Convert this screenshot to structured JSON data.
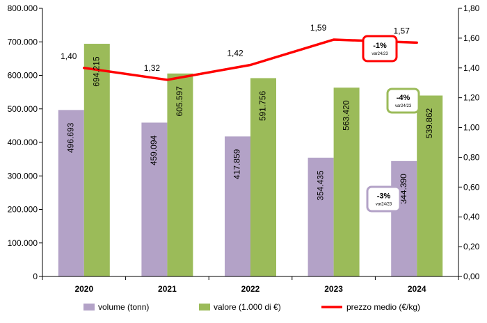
{
  "chart_data": {
    "type": "bar",
    "categories": [
      "2020",
      "2021",
      "2022",
      "2023",
      "2024"
    ],
    "series": [
      {
        "name": "volume (tonn)",
        "values": [
          496693,
          459094,
          417859,
          354435,
          344390
        ],
        "labels": [
          "496.693",
          "459.094",
          "417.859",
          "354.435",
          "344.390"
        ],
        "color": "#b3a2c7",
        "axis": "left"
      },
      {
        "name": "valore (1.000 di €)",
        "values": [
          694215,
          605597,
          591756,
          563420,
          539862
        ],
        "labels": [
          "694.215",
          "605.597",
          "591.756",
          "563.420",
          "539.862"
        ],
        "color": "#9bbb59",
        "axis": "left"
      },
      {
        "name": "prezzo medio (€/kg)",
        "type": "line",
        "values": [
          1.4,
          1.32,
          1.42,
          1.59,
          1.57
        ],
        "labels": [
          "1,40",
          "1,32",
          "1,42",
          "1,59",
          "1,57"
        ],
        "color": "#ff0000",
        "axis": "right"
      }
    ],
    "y_left": {
      "ylim": [
        0,
        800000
      ],
      "ticks": [
        "0",
        "100.000",
        "200.000",
        "300.000",
        "400.000",
        "500.000",
        "600.000",
        "700.000",
        "800.000"
      ]
    },
    "y_right": {
      "ylim": [
        0,
        1.8
      ],
      "ticks": [
        "0,00",
        "0,20",
        "0,40",
        "0,60",
        "0,80",
        "1,00",
        "1,20",
        "1,40",
        "1,60",
        "1,80"
      ]
    },
    "annotations": [
      {
        "text": "-1%",
        "sub": "var24/23",
        "border": "#ff0000",
        "refers_to": "prezzo medio (€/kg)"
      },
      {
        "text": "-4%",
        "sub": "var24/23",
        "border": "#9bbb59",
        "refers_to": "valore (1.000 di €)"
      },
      {
        "text": "-3%",
        "sub": "var24/23",
        "border": "#b3a2c7",
        "refers_to": "volume (tonn)"
      }
    ],
    "grid": false,
    "legend_position": "bottom"
  }
}
